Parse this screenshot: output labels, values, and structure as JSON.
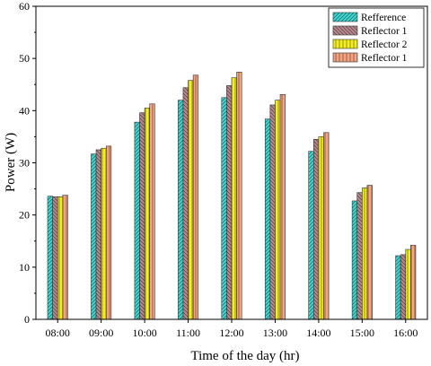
{
  "chart_data": {
    "type": "bar",
    "xlabel": "Time of the day (hr)",
    "ylabel": "Power (W)",
    "ylim": [
      0,
      60
    ],
    "yticks": [
      0,
      10,
      20,
      30,
      40,
      50,
      60
    ],
    "grid": false,
    "legend_position": "top-right",
    "categories": [
      "08:00",
      "09:00",
      "10:00",
      "11:00",
      "12:00",
      "13:00",
      "14:00",
      "15:00",
      "16:00"
    ],
    "series": [
      {
        "name": "Refference",
        "color": "#3fd6d0",
        "pattern": "diag-right",
        "values": [
          23.6,
          31.7,
          37.8,
          42.0,
          42.5,
          38.4,
          32.2,
          22.7,
          12.2
        ]
      },
      {
        "name": "Reflector 1",
        "color": "#b88a8f",
        "pattern": "diag-left",
        "values": [
          23.5,
          32.5,
          39.6,
          44.4,
          44.8,
          41.1,
          34.5,
          24.3,
          12.4
        ]
      },
      {
        "name": "Reflector 2",
        "color": "#f2ee22",
        "pattern": "vertical",
        "values": [
          23.5,
          32.8,
          40.5,
          45.8,
          46.3,
          42.0,
          35.0,
          25.2,
          13.4
        ]
      },
      {
        "name": "Reflector 1",
        "color": "#f4a480",
        "pattern": "vertical",
        "values": [
          23.8,
          33.2,
          41.3,
          46.8,
          47.4,
          43.1,
          35.8,
          25.7,
          14.2
        ]
      }
    ]
  }
}
